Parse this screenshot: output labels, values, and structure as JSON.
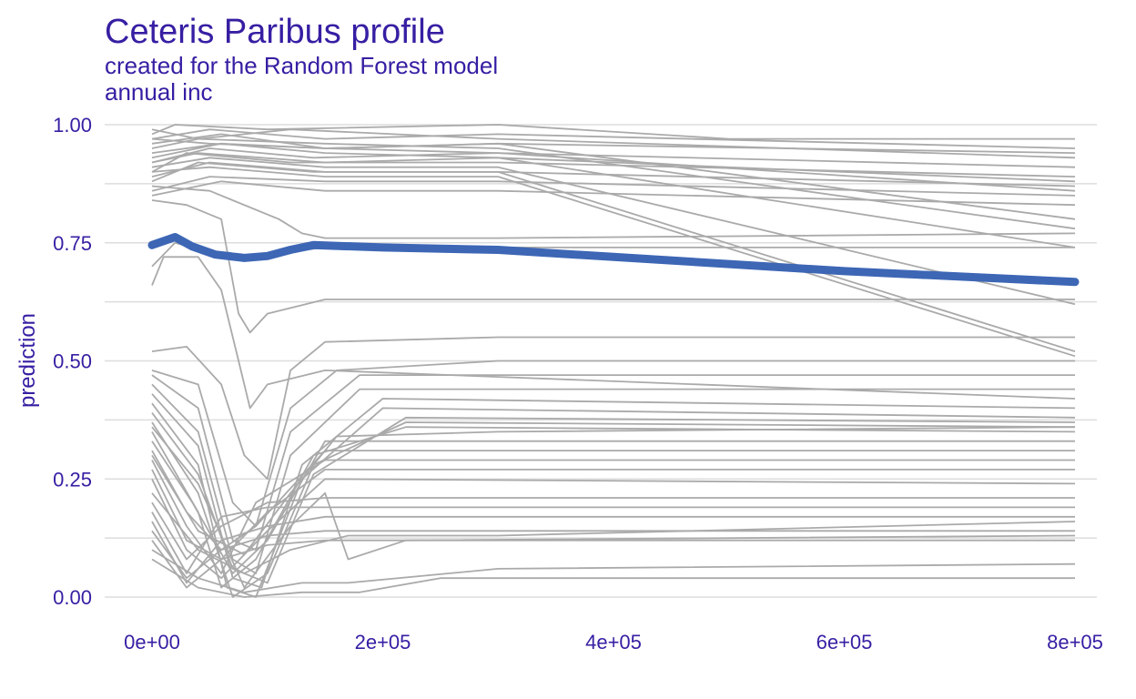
{
  "chart_data": {
    "type": "line",
    "title": "Ceteris Paribus profile",
    "subtitle_lines": [
      "created for the Random Forest model",
      "annual  inc"
    ],
    "xlabel": "",
    "ylabel": "prediction",
    "xlim": [
      0,
      800000
    ],
    "ylim": [
      0,
      1
    ],
    "x_ticks": [
      0,
      200000,
      400000,
      600000,
      800000
    ],
    "x_tick_labels": [
      "0e+00",
      "2e+05",
      "4e+05",
      "6e+05",
      "8e+05"
    ],
    "y_ticks": [
      0,
      0.25,
      0.5,
      0.75,
      1.0
    ],
    "y_tick_labels": [
      "0.00",
      "0.25",
      "0.50",
      "0.75",
      "1.00"
    ],
    "grid": true,
    "legend": "none",
    "colors": {
      "profiles": "#aaaaaa",
      "aggregate": "#3d66b5",
      "text": "#371ea3",
      "grid": "#dddddd"
    },
    "series": [
      {
        "values": [
          [
            0,
            0.745
          ],
          [
            20000,
            0.762
          ],
          [
            35000,
            0.742
          ],
          [
            55000,
            0.725
          ],
          [
            80000,
            0.718
          ],
          [
            100000,
            0.722
          ],
          [
            120000,
            0.735
          ],
          [
            140000,
            0.745
          ],
          [
            200000,
            0.74
          ],
          [
            300000,
            0.735
          ],
          [
            400000,
            0.72
          ],
          [
            600000,
            0.69
          ],
          [
            800000,
            0.667
          ]
        ]
      }
    ],
    "profiles": [
      [
        [
          0,
          0.98
        ],
        [
          20000,
          1.0
        ],
        [
          100000,
          0.99
        ],
        [
          300000,
          1.0
        ],
        [
          500000,
          0.97
        ],
        [
          800000,
          0.97
        ]
      ],
      [
        [
          0,
          0.97
        ],
        [
          50000,
          0.99
        ],
        [
          150000,
          0.97
        ],
        [
          300000,
          0.98
        ],
        [
          800000,
          0.95
        ]
      ],
      [
        [
          0,
          0.95
        ],
        [
          40000,
          0.97
        ],
        [
          120000,
          0.99
        ],
        [
          300000,
          0.97
        ],
        [
          800000,
          0.93
        ]
      ],
      [
        [
          0,
          0.93
        ],
        [
          60000,
          0.96
        ],
        [
          150000,
          0.95
        ],
        [
          300000,
          0.96
        ],
        [
          800000,
          0.94
        ]
      ],
      [
        [
          0,
          0.92
        ],
        [
          50000,
          0.95
        ],
        [
          140000,
          0.93
        ],
        [
          300000,
          0.94
        ],
        [
          800000,
          0.91
        ]
      ],
      [
        [
          0,
          0.9
        ],
        [
          30000,
          0.94
        ],
        [
          120000,
          0.92
        ],
        [
          300000,
          0.92
        ],
        [
          800000,
          0.89
        ]
      ],
      [
        [
          0,
          0.88
        ],
        [
          40000,
          0.92
        ],
        [
          140000,
          0.9
        ],
        [
          300000,
          0.9
        ],
        [
          800000,
          0.87
        ]
      ],
      [
        [
          0,
          0.86
        ],
        [
          50000,
          0.89
        ],
        [
          150000,
          0.88
        ],
        [
          300000,
          0.88
        ],
        [
          800000,
          0.85
        ]
      ],
      [
        [
          0,
          0.85
        ],
        [
          60000,
          0.88
        ],
        [
          150000,
          0.86
        ],
        [
          300000,
          0.86
        ],
        [
          800000,
          0.83
        ]
      ],
      [
        [
          0,
          0.87
        ],
        [
          50000,
          0.86
        ],
        [
          110000,
          0.8
        ],
        [
          130000,
          0.77
        ],
        [
          150000,
          0.76
        ],
        [
          300000,
          0.76
        ],
        [
          800000,
          0.77
        ]
      ],
      [
        [
          0,
          0.99
        ],
        [
          40000,
          0.97
        ],
        [
          150000,
          0.96
        ],
        [
          300000,
          0.95
        ],
        [
          800000,
          0.78
        ]
      ],
      [
        [
          0,
          0.96
        ],
        [
          60000,
          0.98
        ],
        [
          150000,
          0.95
        ],
        [
          300000,
          0.96
        ],
        [
          800000,
          0.8
        ]
      ],
      [
        [
          0,
          0.94
        ],
        [
          60000,
          0.96
        ],
        [
          150000,
          0.94
        ],
        [
          300000,
          0.93
        ],
        [
          800000,
          0.74
        ]
      ],
      [
        [
          0,
          0.91
        ],
        [
          50000,
          0.93
        ],
        [
          150000,
          0.91
        ],
        [
          300000,
          0.91
        ],
        [
          800000,
          0.62
        ]
      ],
      [
        [
          0,
          0.89
        ],
        [
          50000,
          0.92
        ],
        [
          150000,
          0.9
        ],
        [
          300000,
          0.9
        ],
        [
          800000,
          0.52
        ]
      ],
      [
        [
          0,
          0.9
        ],
        [
          50000,
          0.91
        ],
        [
          150000,
          0.89
        ],
        [
          300000,
          0.89
        ],
        [
          800000,
          0.51
        ]
      ],
      [
        [
          0,
          0.92
        ],
        [
          40000,
          0.94
        ],
        [
          150000,
          0.92
        ],
        [
          300000,
          0.93
        ],
        [
          800000,
          0.88
        ]
      ],
      [
        [
          0,
          0.97
        ],
        [
          50000,
          0.96
        ],
        [
          150000,
          0.95
        ],
        [
          300000,
          0.94
        ],
        [
          800000,
          0.86
        ]
      ],
      [
        [
          0,
          0.84
        ],
        [
          30000,
          0.83
        ],
        [
          60000,
          0.8
        ],
        [
          75000,
          0.6
        ],
        [
          85000,
          0.56
        ],
        [
          100000,
          0.6
        ],
        [
          150000,
          0.63
        ],
        [
          300000,
          0.63
        ],
        [
          800000,
          0.63
        ]
      ],
      [
        [
          0,
          0.7
        ],
        [
          20000,
          0.75
        ],
        [
          50000,
          0.73
        ],
        [
          80000,
          0.72
        ],
        [
          150000,
          0.74
        ],
        [
          300000,
          0.74
        ],
        [
          800000,
          0.74
        ]
      ],
      [
        [
          0,
          0.66
        ],
        [
          10000,
          0.72
        ],
        [
          40000,
          0.72
        ],
        [
          60000,
          0.65
        ],
        [
          75000,
          0.5
        ],
        [
          85000,
          0.4
        ],
        [
          100000,
          0.45
        ],
        [
          150000,
          0.48
        ],
        [
          800000,
          0.42
        ]
      ],
      [
        [
          0,
          0.52
        ],
        [
          30000,
          0.53
        ],
        [
          60000,
          0.45
        ],
        [
          80000,
          0.3
        ],
        [
          100000,
          0.25
        ],
        [
          120000,
          0.48
        ],
        [
          150000,
          0.54
        ],
        [
          300000,
          0.55
        ],
        [
          800000,
          0.55
        ]
      ],
      [
        [
          0,
          0.48
        ],
        [
          40000,
          0.45
        ],
        [
          70000,
          0.2
        ],
        [
          90000,
          0.15
        ],
        [
          120000,
          0.4
        ],
        [
          160000,
          0.48
        ],
        [
          300000,
          0.5
        ],
        [
          800000,
          0.5
        ]
      ],
      [
        [
          0,
          0.47
        ],
        [
          40000,
          0.4
        ],
        [
          70000,
          0.12
        ],
        [
          90000,
          0.1
        ],
        [
          120000,
          0.35
        ],
        [
          180000,
          0.47
        ],
        [
          800000,
          0.47
        ]
      ],
      [
        [
          0,
          0.45
        ],
        [
          40000,
          0.35
        ],
        [
          70000,
          0.08
        ],
        [
          90000,
          0.05
        ],
        [
          120000,
          0.3
        ],
        [
          180000,
          0.44
        ],
        [
          800000,
          0.44
        ]
      ],
      [
        [
          0,
          0.43
        ],
        [
          40000,
          0.32
        ],
        [
          70000,
          0.04
        ],
        [
          95000,
          0.02
        ],
        [
          130000,
          0.28
        ],
        [
          200000,
          0.42
        ],
        [
          800000,
          0.4
        ]
      ],
      [
        [
          0,
          0.41
        ],
        [
          40000,
          0.28
        ],
        [
          65000,
          0.02
        ],
        [
          90000,
          0.0
        ],
        [
          130000,
          0.25
        ],
        [
          200000,
          0.4
        ],
        [
          800000,
          0.38
        ]
      ],
      [
        [
          0,
          0.39
        ],
        [
          40000,
          0.26
        ],
        [
          70000,
          0.06
        ],
        [
          100000,
          0.03
        ],
        [
          140000,
          0.26
        ],
        [
          220000,
          0.38
        ],
        [
          800000,
          0.37
        ]
      ],
      [
        [
          0,
          0.37
        ],
        [
          40000,
          0.22
        ],
        [
          70000,
          0.0
        ],
        [
          100000,
          0.05
        ],
        [
          140000,
          0.28
        ],
        [
          220000,
          0.37
        ],
        [
          800000,
          0.36
        ]
      ],
      [
        [
          0,
          0.35
        ],
        [
          40000,
          0.18
        ],
        [
          60000,
          0.02
        ],
        [
          90000,
          0.08
        ],
        [
          140000,
          0.3
        ],
        [
          220000,
          0.36
        ],
        [
          800000,
          0.35
        ]
      ],
      [
        [
          0,
          0.33
        ],
        [
          35000,
          0.2
        ],
        [
          70000,
          0.05
        ],
        [
          100000,
          0.12
        ],
        [
          150000,
          0.33
        ],
        [
          800000,
          0.33
        ]
      ],
      [
        [
          0,
          0.31
        ],
        [
          30000,
          0.18
        ],
        [
          60000,
          0.1
        ],
        [
          90000,
          0.15
        ],
        [
          150000,
          0.31
        ],
        [
          800000,
          0.31
        ]
      ],
      [
        [
          0,
          0.29
        ],
        [
          30000,
          0.15
        ],
        [
          60000,
          0.05
        ],
        [
          90000,
          0.2
        ],
        [
          150000,
          0.29
        ],
        [
          800000,
          0.29
        ]
      ],
      [
        [
          0,
          0.27
        ],
        [
          30000,
          0.12
        ],
        [
          60000,
          0.08
        ],
        [
          100000,
          0.18
        ],
        [
          150000,
          0.27
        ],
        [
          800000,
          0.27
        ]
      ],
      [
        [
          0,
          0.25
        ],
        [
          30000,
          0.1
        ],
        [
          60000,
          0.04
        ],
        [
          100000,
          0.14
        ],
        [
          150000,
          0.25
        ],
        [
          800000,
          0.24
        ]
      ],
      [
        [
          0,
          0.2
        ],
        [
          30000,
          0.08
        ],
        [
          60000,
          0.15
        ],
        [
          100000,
          0.2
        ],
        [
          150000,
          0.21
        ],
        [
          800000,
          0.21
        ]
      ],
      [
        [
          0,
          0.18
        ],
        [
          30000,
          0.05
        ],
        [
          60000,
          0.17
        ],
        [
          100000,
          0.19
        ],
        [
          800000,
          0.19
        ]
      ],
      [
        [
          0,
          0.16
        ],
        [
          30000,
          0.03
        ],
        [
          60000,
          0.12
        ],
        [
          100000,
          0.15
        ],
        [
          150000,
          0.17
        ],
        [
          800000,
          0.17
        ]
      ],
      [
        [
          0,
          0.14
        ],
        [
          30000,
          0.04
        ],
        [
          60000,
          0.1
        ],
        [
          100000,
          0.13
        ],
        [
          150000,
          0.14
        ],
        [
          800000,
          0.14
        ]
      ],
      [
        [
          0,
          0.12
        ],
        [
          30000,
          0.02
        ],
        [
          60000,
          0.08
        ],
        [
          100000,
          0.11
        ],
        [
          150000,
          0.12
        ],
        [
          800000,
          0.12
        ]
      ],
      [
        [
          0,
          0.22
        ],
        [
          40000,
          0.1
        ],
        [
          80000,
          0.05
        ],
        [
          120000,
          0.1
        ],
        [
          170000,
          0.13
        ],
        [
          300000,
          0.13
        ],
        [
          800000,
          0.16
        ]
      ],
      [
        [
          0,
          0.1
        ],
        [
          40000,
          0.04
        ],
        [
          80000,
          0.01
        ],
        [
          130000,
          0.03
        ],
        [
          170000,
          0.03
        ],
        [
          300000,
          0.06
        ],
        [
          800000,
          0.07
        ]
      ],
      [
        [
          0,
          0.08
        ],
        [
          40000,
          0.02
        ],
        [
          80000,
          0.0
        ],
        [
          130000,
          0.01
        ],
        [
          180000,
          0.01
        ],
        [
          250000,
          0.04
        ],
        [
          800000,
          0.04
        ]
      ],
      [
        [
          0,
          0.36
        ],
        [
          40000,
          0.24
        ],
        [
          80000,
          0.02
        ],
        [
          120000,
          0.15
        ],
        [
          150000,
          0.22
        ],
        [
          170000,
          0.08
        ],
        [
          220000,
          0.12
        ],
        [
          800000,
          0.13
        ]
      ],
      [
        [
          0,
          0.3
        ],
        [
          40000,
          0.14
        ],
        [
          80000,
          0.09
        ],
        [
          120000,
          0.22
        ],
        [
          160000,
          0.34
        ],
        [
          300000,
          0.35
        ],
        [
          800000,
          0.36
        ]
      ]
    ]
  }
}
